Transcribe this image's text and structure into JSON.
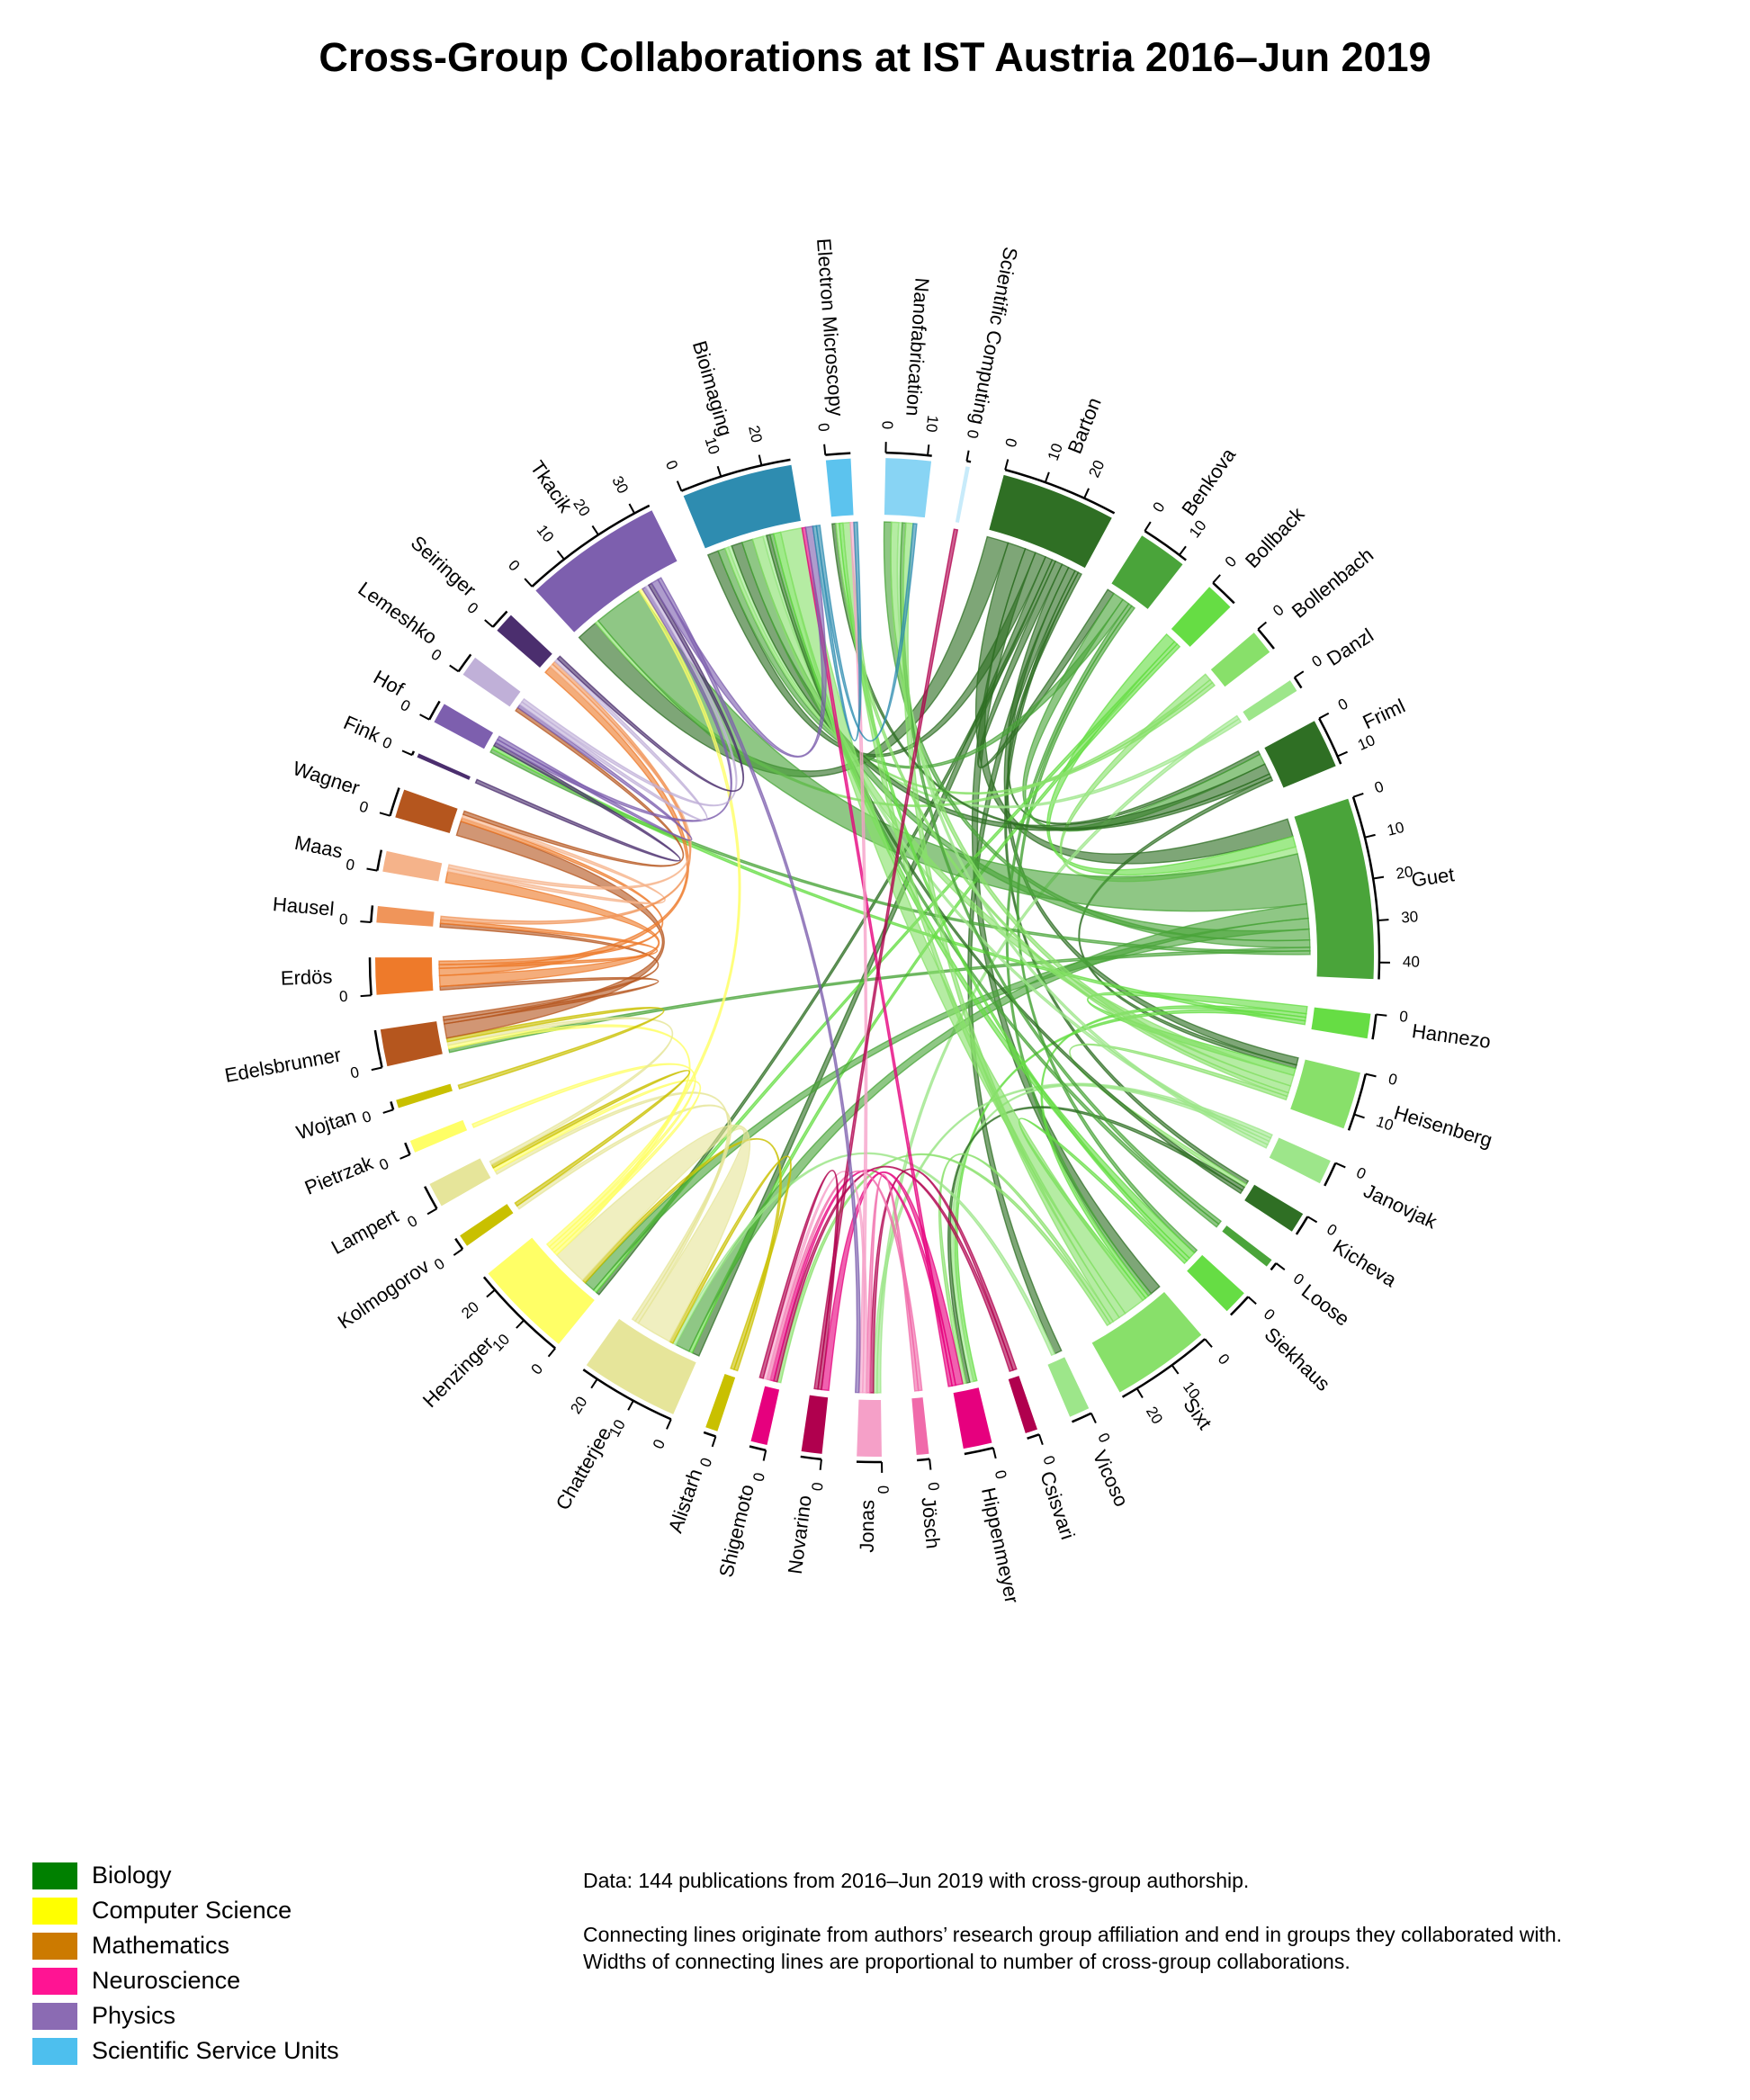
{
  "title": "Cross-Group Collaborations at IST Austria 2016–Jun 2019",
  "colors": {
    "Biology": "#008000",
    "Computer Science": "#ffff00",
    "Mathematics": "#cc7a00",
    "Neuroscience": "#ff1493",
    "Physics": "#8b6bb3",
    "Scientific Service Units": "#4dbfee"
  },
  "legend": [
    {
      "label": "Biology",
      "color": "#008000"
    },
    {
      "label": "Computer Science",
      "color": "#ffff00"
    },
    {
      "label": "Mathematics",
      "color": "#cc7a00"
    },
    {
      "label": "Neuroscience",
      "color": "#ff1493"
    },
    {
      "label": "Physics",
      "color": "#8b6bb3"
    },
    {
      "label": "Scientific Service Units",
      "color": "#4dbfee"
    }
  ],
  "notes": {
    "line1": "Data: 144 publications from 2016–Jun 2019 with cross-group authorship.",
    "line2": "Connecting lines originate from authors’ research group affiliation and end in groups they collaborated with.",
    "line3": "Widths of connecting lines are proportional to number of cross-group collaborations."
  },
  "groups": [
    {
      "name": "Barton",
      "field": "Biology",
      "size": 28,
      "ticks": [
        "0",
        "10",
        "20"
      ],
      "color": "#2f6f24"
    },
    {
      "name": "Benkova",
      "field": "Biology",
      "size": 12,
      "ticks": [
        "0",
        "10"
      ],
      "color": "#4aa43a"
    },
    {
      "name": "Bollback",
      "field": "Biology",
      "size": 7,
      "ticks": [
        "0"
      ],
      "color": "#66dd44"
    },
    {
      "name": "Bollenbach",
      "field": "Biology",
      "size": 6,
      "ticks": [
        "0"
      ],
      "color": "#88e06a"
    },
    {
      "name": "Danzl",
      "field": "Biology",
      "size": 3,
      "ticks": [
        "0"
      ],
      "color": "#9de68a"
    },
    {
      "name": "Friml",
      "field": "Biology",
      "size": 12,
      "ticks": [
        "0",
        "10"
      ],
      "color": "#2f6f24"
    },
    {
      "name": "Guet",
      "field": "Biology",
      "size": 44,
      "ticks": [
        "0",
        "10",
        "20",
        "30",
        "40"
      ],
      "color": "#4aa43a"
    },
    {
      "name": "Hannezo",
      "field": "Biology",
      "size": 6,
      "ticks": [
        "0"
      ],
      "color": "#66dd44"
    },
    {
      "name": "Heisenberg",
      "field": "Biology",
      "size": 14,
      "ticks": [
        "0",
        "10"
      ],
      "color": "#88e06a"
    },
    {
      "name": "Janovjak",
      "field": "Biology",
      "size": 6,
      "ticks": [
        "0"
      ],
      "color": "#9de68a"
    },
    {
      "name": "Kicheva",
      "field": "Biology",
      "size": 5,
      "ticks": [
        "0"
      ],
      "color": "#2f6f24"
    },
    {
      "name": "Loose",
      "field": "Biology",
      "size": 2,
      "ticks": [
        "0"
      ],
      "color": "#4aa43a"
    },
    {
      "name": "Siekhaus",
      "field": "Biology",
      "size": 6,
      "ticks": [
        "0"
      ],
      "color": "#66dd44"
    },
    {
      "name": "Sixt",
      "field": "Biology",
      "size": 24,
      "ticks": [
        "0",
        "10",
        "20"
      ],
      "color": "#88e06a"
    },
    {
      "name": "Vicoso",
      "field": "Biology",
      "size": 5,
      "ticks": [
        "0"
      ],
      "color": "#9de68a"
    },
    {
      "name": "Csisvari",
      "field": "Neuroscience",
      "size": 3,
      "ticks": [
        "0"
      ],
      "color": "#b0004e"
    },
    {
      "name": "Hippenmeyer",
      "field": "Neuroscience",
      "size": 7,
      "ticks": [
        "0"
      ],
      "color": "#e6007e"
    },
    {
      "name": "Jösch",
      "field": "Neuroscience",
      "size": 3,
      "ticks": [
        "0"
      ],
      "color": "#f06aaa"
    },
    {
      "name": "Jonas",
      "field": "Neuroscience",
      "size": 6,
      "ticks": [
        "0"
      ],
      "color": "#f5a0c8"
    },
    {
      "name": "Novarino",
      "field": "Neuroscience",
      "size": 5,
      "ticks": [
        "0"
      ],
      "color": "#b0004e"
    },
    {
      "name": "Shigemoto",
      "field": "Neuroscience",
      "size": 4,
      "ticks": [
        "0"
      ],
      "color": "#e6007e"
    },
    {
      "name": "Alistarh",
      "field": "Computer Science",
      "size": 3,
      "ticks": [
        "0"
      ],
      "color": "#c9c000"
    },
    {
      "name": "Chatterjee",
      "field": "Computer Science",
      "size": 24,
      "ticks": [
        "0",
        "10",
        "20"
      ],
      "color": "#e6e59a"
    },
    {
      "name": "Henzinger",
      "field": "Computer Science",
      "size": 24,
      "ticks": [
        "0",
        "10",
        "20"
      ],
      "color": "#ffff66"
    },
    {
      "name": "Kolmogorov",
      "field": "Computer Science",
      "size": 3,
      "ticks": [
        "0"
      ],
      "color": "#c9c000"
    },
    {
      "name": "Lampert",
      "field": "Computer Science",
      "size": 6,
      "ticks": [
        "0"
      ],
      "color": "#e6e59a"
    },
    {
      "name": "Pietrzak",
      "field": "Computer Science",
      "size": 3,
      "ticks": [
        "0"
      ],
      "color": "#ffff66"
    },
    {
      "name": "Wojtan",
      "field": "Computer Science",
      "size": 2,
      "ticks": [
        "0"
      ],
      "color": "#c9c000"
    },
    {
      "name": "Edelsbrunner",
      "field": "Mathematics",
      "size": 9,
      "ticks": [
        "0"
      ],
      "color": "#b5561e"
    },
    {
      "name": "Erdös",
      "field": "Mathematics",
      "size": 9,
      "ticks": [
        "0"
      ],
      "color": "#ee7a2a"
    },
    {
      "name": "Hausel",
      "field": "Mathematics",
      "size": 4,
      "ticks": [
        "0"
      ],
      "color": "#f0955a"
    },
    {
      "name": "Maas",
      "field": "Mathematics",
      "size": 5,
      "ticks": [
        "0"
      ],
      "color": "#f5b38a"
    },
    {
      "name": "Wagner",
      "field": "Mathematics",
      "size": 7,
      "ticks": [
        "0"
      ],
      "color": "#b5561e"
    },
    {
      "name": "Fink",
      "field": "Physics",
      "size": 1,
      "ticks": [
        "0"
      ],
      "color": "#4b2e6e"
    },
    {
      "name": "Hof",
      "field": "Physics",
      "size": 5,
      "ticks": [
        "0"
      ],
      "color": "#7d5fae"
    },
    {
      "name": "Lemeshko",
      "field": "Physics",
      "size": 5,
      "ticks": [
        "0"
      ],
      "color": "#c0b0d8"
    },
    {
      "name": "Seiringer",
      "field": "Physics",
      "size": 5,
      "ticks": [
        "0"
      ],
      "color": "#4b2e6e"
    },
    {
      "name": "Tkacik",
      "field": "Physics",
      "size": 34,
      "ticks": [
        "0",
        "10",
        "20",
        "30"
      ],
      "color": "#7d5fae"
    },
    {
      "name": "Bioimaging",
      "field": "Scientific Service Units",
      "size": 27,
      "ticks": [
        "0",
        "10",
        "20"
      ],
      "color": "#2e8cb0"
    },
    {
      "name": "Electron Microscopy",
      "field": "Scientific Service Units",
      "size": 6,
      "ticks": [
        "0"
      ],
      "color": "#5cc3ee"
    },
    {
      "name": "Nanofabrication",
      "field": "Scientific Service Units",
      "size": 11,
      "ticks": [
        "0",
        "10"
      ],
      "color": "#88d4f4"
    },
    {
      "name": "Scientific Computing",
      "field": "Scientific Service Units",
      "size": 1,
      "ticks": [
        "0"
      ],
      "color": "#c8ebfa"
    }
  ],
  "links": [
    [
      "Barton",
      "Tkacik",
      6
    ],
    [
      "Barton",
      "Guet",
      5
    ],
    [
      "Barton",
      "Sixt",
      3
    ],
    [
      "Barton",
      "Bioimaging",
      3
    ],
    [
      "Barton",
      "Chatterjee",
      2
    ],
    [
      "Barton",
      "Henzinger",
      1
    ],
    [
      "Barton",
      "Benkova",
      2
    ],
    [
      "Barton",
      "Heisenberg",
      2
    ],
    [
      "Barton",
      "Vicoso",
      2
    ],
    [
      "Barton",
      "Kicheva",
      1
    ],
    [
      "Barton",
      "Friml",
      1
    ],
    [
      "Benkova",
      "Friml",
      3
    ],
    [
      "Benkova",
      "Bioimaging",
      2
    ],
    [
      "Benkova",
      "Sixt",
      1
    ],
    [
      "Benkova",
      "Siekhaus",
      1
    ],
    [
      "Bollback",
      "Guet",
      3
    ],
    [
      "Bollback",
      "Henzinger",
      1
    ],
    [
      "Bollback",
      "Chatterjee",
      1
    ],
    [
      "Bollenbach",
      "Guet",
      2
    ],
    [
      "Bollenbach",
      "Tkacik",
      1
    ],
    [
      "Bollenbach",
      "Bioimaging",
      1
    ],
    [
      "Danzl",
      "Jonas",
      1
    ],
    [
      "Danzl",
      "Bioimaging",
      1
    ],
    [
      "Friml",
      "Bioimaging",
      3
    ],
    [
      "Friml",
      "Electron Microscopy",
      1
    ],
    [
      "Friml",
      "Heisenberg",
      1
    ],
    [
      "Guet",
      "Tkacik",
      14
    ],
    [
      "Guet",
      "Chatterjee",
      4
    ],
    [
      "Guet",
      "Henzinger",
      3
    ],
    [
      "Guet",
      "Bioimaging",
      3
    ],
    [
      "Guet",
      "Nanofabrication",
      2
    ],
    [
      "Guet",
      "Edelsbrunner",
      1
    ],
    [
      "Guet",
      "Hof",
      1
    ],
    [
      "Hannezo",
      "Heisenberg",
      2
    ],
    [
      "Hannezo",
      "Sixt",
      1
    ],
    [
      "Hannezo",
      "Hippenmeyer",
      1
    ],
    [
      "Hannezo",
      "Hof",
      1
    ],
    [
      "Heisenberg",
      "Bioimaging",
      3
    ],
    [
      "Heisenberg",
      "Nanofabrication",
      2
    ],
    [
      "Heisenberg",
      "Electron Microscopy",
      1
    ],
    [
      "Heisenberg",
      "Kicheva",
      1
    ],
    [
      "Janovjak",
      "Jonas",
      1
    ],
    [
      "Janovjak",
      "Hippenmeyer",
      1
    ],
    [
      "Janovjak",
      "Bioimaging",
      1
    ],
    [
      "Janovjak",
      "Nanofabrication",
      1
    ],
    [
      "Kicheva",
      "Hippenmeyer",
      1
    ],
    [
      "Kicheva",
      "Bioimaging",
      1
    ],
    [
      "Loose",
      "Nanofabrication",
      1
    ],
    [
      "Loose",
      "Bioimaging",
      1
    ],
    [
      "Siekhaus",
      "Bioimaging",
      2
    ],
    [
      "Siekhaus",
      "Electron Microscopy",
      1
    ],
    [
      "Siekhaus",
      "Sixt",
      1
    ],
    [
      "Sixt",
      "Bioimaging",
      6
    ],
    [
      "Sixt",
      "Electron Microscopy",
      2
    ],
    [
      "Sixt",
      "Nanofabrication",
      2
    ],
    [
      "Sixt",
      "Hippenmeyer",
      1
    ],
    [
      "Sixt",
      "Shigemoto",
      1
    ],
    [
      "Vicoso",
      "Chatterjee",
      1
    ],
    [
      "Csisvari",
      "Jonas",
      1
    ],
    [
      "Csisvari",
      "Shigemoto",
      1
    ],
    [
      "Hippenmeyer",
      "Novarino",
      2
    ],
    [
      "Hippenmeyer",
      "Shigemoto",
      1
    ],
    [
      "Hippenmeyer",
      "Bioimaging",
      1
    ],
    [
      "Jösch",
      "Shigemoto",
      1
    ],
    [
      "Jösch",
      "Jonas",
      1
    ],
    [
      "Jonas",
      "Shigemoto",
      1
    ],
    [
      "Jonas",
      "Electron Microscopy",
      1
    ],
    [
      "Novarino",
      "Shigemoto",
      1
    ],
    [
      "Novarino",
      "Scientific Computing",
      1
    ],
    [
      "Alistarh",
      "Henzinger",
      1
    ],
    [
      "Alistarh",
      "Chatterjee",
      1
    ],
    [
      "Chatterjee",
      "Henzinger",
      10
    ],
    [
      "Chatterjee",
      "Lampert",
      1
    ],
    [
      "Chatterjee",
      "Kolmogorov",
      1
    ],
    [
      "Henzinger",
      "Tkacik",
      1
    ],
    [
      "Henzinger",
      "Lampert",
      1
    ],
    [
      "Henzinger",
      "Pietrzak",
      1
    ],
    [
      "Henzinger",
      "Edelsbrunner",
      1
    ],
    [
      "Kolmogorov",
      "Lampert",
      1
    ],
    [
      "Lampert",
      "Edelsbrunner",
      1
    ],
    [
      "Wojtan",
      "Edelsbrunner",
      1
    ],
    [
      "Edelsbrunner",
      "Wagner",
      4
    ],
    [
      "Edelsbrunner",
      "Erdös",
      1
    ],
    [
      "Edelsbrunner",
      "Hausel",
      1
    ],
    [
      "Erdös",
      "Maas",
      3
    ],
    [
      "Erdös",
      "Seiringer",
      2
    ],
    [
      "Erdös",
      "Hausel",
      1
    ],
    [
      "Erdös",
      "Wagner",
      1
    ],
    [
      "Maas",
      "Wagner",
      1
    ],
    [
      "Maas",
      "Seiringer",
      1
    ],
    [
      "Hausel",
      "Seiringer",
      1
    ],
    [
      "Wagner",
      "Lemeshko",
      1
    ],
    [
      "Fink",
      "Hof",
      1
    ],
    [
      "Hof",
      "Tkacik",
      1
    ],
    [
      "Hof",
      "Lemeshko",
      1
    ],
    [
      "Lemeshko",
      "Seiringer",
      1
    ],
    [
      "Lemeshko",
      "Tkacik",
      1
    ],
    [
      "Seiringer",
      "Tkacik",
      1
    ],
    [
      "Tkacik",
      "Bioimaging",
      2
    ],
    [
      "Tkacik",
      "Jonas",
      1
    ],
    [
      "Bioimaging",
      "Electron Microscopy",
      1
    ],
    [
      "Bioimaging",
      "Nanofabrication",
      1
    ]
  ]
}
